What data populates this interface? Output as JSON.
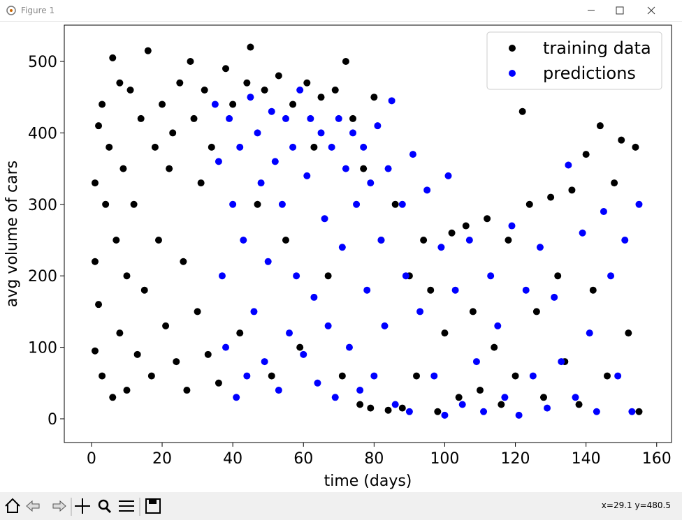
{
  "window": {
    "title": "Figure 1",
    "status": "x=29.1 y=480.5"
  },
  "chart_data": {
    "type": "scatter",
    "xlabel": "time (days)",
    "ylabel": "avg volume of cars",
    "xlim": [
      -7.7,
      164.2
    ],
    "ylim": [
      -33.2,
      550.8
    ],
    "xticks": [
      0,
      20,
      40,
      60,
      80,
      100,
      120,
      140,
      160
    ],
    "yticks": [
      0,
      100,
      200,
      300,
      400,
      500
    ],
    "legend": "upper right",
    "series": [
      {
        "name": "training data",
        "color": "#000000",
        "x": [
          1,
          1,
          1,
          2,
          2,
          3,
          3,
          4,
          5,
          6,
          6,
          7,
          8,
          8,
          9,
          10,
          10,
          11,
          12,
          13,
          14,
          15,
          16,
          17,
          18,
          19,
          20,
          21,
          22,
          23,
          24,
          25,
          26,
          27,
          28,
          29,
          30,
          31,
          32,
          33,
          34,
          36,
          38,
          40,
          42,
          44,
          45,
          47,
          49,
          51,
          53,
          55,
          57,
          59,
          61,
          63,
          65,
          67,
          69,
          71,
          72,
          74,
          76,
          77,
          79,
          80,
          82,
          84,
          86,
          88,
          90,
          92,
          94,
          96,
          98,
          100,
          102,
          104,
          106,
          108,
          110,
          112,
          114,
          116,
          118,
          120,
          122,
          124,
          126,
          128,
          130,
          132,
          134,
          136,
          138,
          140,
          142,
          144,
          146,
          148,
          150,
          152,
          154,
          155
        ],
        "values": [
          330,
          220,
          95,
          160,
          410,
          440,
          60,
          300,
          380,
          505,
          30,
          250,
          470,
          120,
          350,
          200,
          40,
          460,
          300,
          90,
          420,
          180,
          515,
          60,
          380,
          250,
          440,
          130,
          350,
          400,
          80,
          470,
          220,
          40,
          500,
          420,
          150,
          330,
          460,
          90,
          380,
          50,
          490,
          440,
          120,
          470,
          520,
          300,
          460,
          60,
          480,
          250,
          440,
          100,
          470,
          380,
          450,
          200,
          460,
          60,
          500,
          420,
          20,
          350,
          15,
          450,
          250,
          12,
          300,
          15,
          200,
          60,
          250,
          180,
          10,
          120,
          260,
          30,
          270,
          150,
          40,
          280,
          100,
          20,
          250,
          60,
          430,
          300,
          150,
          30,
          310,
          200,
          80,
          320,
          20,
          370,
          180,
          410,
          60,
          330,
          390,
          120,
          380,
          10
        ]
      },
      {
        "name": "predictions",
        "color": "#0000ff",
        "x": [
          35,
          36,
          37,
          38,
          39,
          40,
          41,
          42,
          43,
          44,
          45,
          46,
          47,
          48,
          49,
          50,
          51,
          52,
          53,
          54,
          55,
          56,
          57,
          58,
          59,
          60,
          61,
          62,
          63,
          64,
          65,
          66,
          67,
          68,
          69,
          70,
          71,
          72,
          73,
          74,
          75,
          76,
          77,
          78,
          79,
          80,
          81,
          82,
          83,
          84,
          85,
          86,
          88,
          89,
          90,
          91,
          93,
          95,
          97,
          99,
          100,
          101,
          103,
          105,
          107,
          109,
          111,
          113,
          115,
          117,
          119,
          121,
          123,
          125,
          127,
          129,
          131,
          133,
          135,
          137,
          139,
          141,
          143,
          145,
          147,
          149,
          151,
          153,
          155
        ],
        "values": [
          440,
          360,
          200,
          100,
          420,
          300,
          30,
          380,
          250,
          60,
          450,
          150,
          400,
          330,
          80,
          220,
          430,
          360,
          40,
          300,
          420,
          120,
          380,
          200,
          460,
          90,
          340,
          420,
          170,
          50,
          400,
          280,
          130,
          380,
          30,
          420,
          240,
          350,
          100,
          400,
          300,
          40,
          380,
          180,
          330,
          60,
          410,
          250,
          130,
          350,
          445,
          20,
          300,
          200,
          10,
          370,
          150,
          320,
          60,
          240,
          5,
          340,
          180,
          20,
          250,
          80,
          10,
          200,
          130,
          30,
          270,
          5,
          180,
          60,
          240,
          15,
          170,
          80,
          355,
          30,
          260,
          120,
          10,
          290,
          200,
          60,
          250,
          10,
          300
        ]
      }
    ]
  }
}
